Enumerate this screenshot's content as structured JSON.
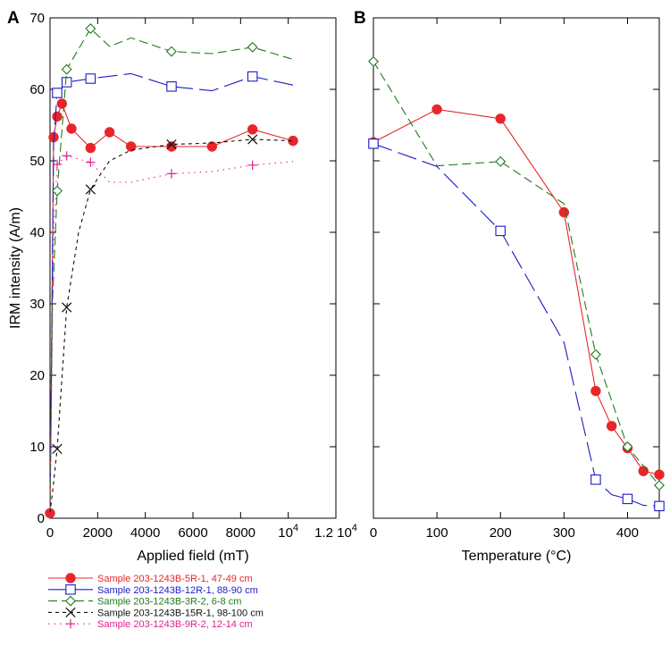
{
  "figure": {
    "panel_labels": [
      "A",
      "B"
    ],
    "legend": [
      {
        "label": "Sample 203-1243B-5R-1, 47-49 cm",
        "color": "#e8262a",
        "marker": "filled-circle",
        "dash": "solid"
      },
      {
        "label": "Sample 203-1243B-12R-1, 88-90 cm",
        "color": "#1b1bc8",
        "marker": "open-square",
        "dash": "long-dash"
      },
      {
        "label": "Sample 203-1243B-3R-2, 6-8 cm",
        "color": "#1f7a1f",
        "marker": "open-diamond",
        "dash": "dash"
      },
      {
        "label": "Sample 203-1243B-15R-1, 98-100 cm",
        "color": "#111111",
        "marker": "x",
        "dash": "short-dash"
      },
      {
        "label": "Sample 203-1243B-9R-2, 12-14 cm",
        "color": "#e0208f",
        "marker": "plus",
        "dash": "dot"
      }
    ]
  },
  "chart_data": [
    {
      "type": "line",
      "panel": "A",
      "xlabel": "Applied field (mT)",
      "ylabel": "IRM intensity (A/m)",
      "xlim": [
        0,
        12000
      ],
      "ylim": [
        0,
        70
      ],
      "x_tick_labels": [
        "0",
        "2000",
        "4000",
        "6000",
        "8000",
        "10⁴",
        "1.2 10⁴"
      ],
      "y_tick_labels": [
        "0",
        "10",
        "20",
        "30",
        "40",
        "50",
        "60",
        "70"
      ],
      "series": [
        {
          "name": "Sample 203-1243B-5R-1, 47-49 cm",
          "x": [
            0,
            150,
            300,
            500,
            900,
            1700,
            2500,
            3400,
            5100,
            6800,
            8500,
            10200
          ],
          "y": [
            0.7,
            53.3,
            56.2,
            58.0,
            54.5,
            51.8,
            54.0,
            52.0,
            52.0,
            52.0,
            54.4,
            52.8
          ]
        },
        {
          "name": "Sample 203-1243B-12R-1, 88-90 cm",
          "x": [
            0,
            150,
            300,
            700,
            1700,
            3400,
            5100,
            6800,
            8500,
            10200
          ],
          "y": [
            0.7,
            52.5,
            59.5,
            61.0,
            61.5,
            62.2,
            60.4,
            59.8,
            61.8,
            60.6
          ],
          "markers_at": [
            300,
            700,
            1700,
            5100,
            8500
          ]
        },
        {
          "name": "Sample 203-1243B-3R-2, 6-8 cm",
          "x": [
            0,
            100,
            300,
            700,
            1700,
            2500,
            3400,
            5100,
            6800,
            8500,
            10200
          ],
          "y": [
            0.7,
            30.0,
            45.8,
            62.8,
            68.5,
            66.0,
            67.2,
            65.3,
            65.0,
            65.9,
            64.2
          ],
          "markers_at": [
            300,
            700,
            1700,
            5100,
            8500
          ]
        },
        {
          "name": "Sample 203-1243B-15R-1, 98-100 cm",
          "x": [
            0,
            150,
            300,
            700,
            1200,
            1700,
            2500,
            3400,
            5100,
            6800,
            8500,
            10200
          ],
          "y": [
            0.7,
            5.0,
            9.7,
            29.5,
            40.0,
            46.0,
            50.0,
            51.5,
            52.3,
            52.5,
            53.0,
            52.8
          ],
          "markers_at": [
            300,
            700,
            1700,
            5100,
            8500
          ]
        },
        {
          "name": "Sample 203-1243B-9R-2, 12-14 cm",
          "x": [
            0,
            150,
            300,
            700,
            1700,
            2500,
            3400,
            5100,
            6800,
            8500,
            10200
          ],
          "y": [
            0.7,
            40.0,
            49.5,
            50.7,
            49.8,
            47.0,
            47.0,
            48.2,
            48.5,
            49.4,
            49.9
          ],
          "markers_at": [
            300,
            700,
            1700,
            5100,
            8500
          ]
        }
      ]
    },
    {
      "type": "line",
      "panel": "B",
      "xlabel": "Temperature (°C)",
      "xlim": [
        0,
        450
      ],
      "ylim": [
        0,
        70
      ],
      "x_tick_labels": [
        "0",
        "100",
        "200",
        "300",
        "400"
      ],
      "series": [
        {
          "name": "Sample 203-1243B-5R-1, 47-49 cm",
          "x": [
            0,
            100,
            200,
            300,
            350,
            375,
            400,
            425,
            450
          ],
          "y": [
            52.6,
            57.2,
            55.9,
            42.8,
            17.8,
            12.9,
            9.8,
            6.6,
            6.1
          ]
        },
        {
          "name": "Sample 203-1243B-12R-1, 88-90 cm",
          "x": [
            0,
            100,
            200,
            300,
            350,
            375,
            400,
            425,
            450
          ],
          "y": [
            52.4,
            49.2,
            40.2,
            24.6,
            5.4,
            3.3,
            2.7,
            1.8,
            1.7
          ],
          "markers_at": [
            0,
            200,
            350,
            400,
            450
          ]
        },
        {
          "name": "Sample 203-1243B-3R-2, 6-8 cm",
          "x": [
            0,
            100,
            200,
            300,
            350,
            400,
            450
          ],
          "y": [
            63.9,
            49.3,
            49.9,
            44.0,
            22.9,
            10.0,
            4.6
          ],
          "markers_at": [
            0,
            200,
            350,
            400,
            450
          ]
        }
      ]
    }
  ]
}
